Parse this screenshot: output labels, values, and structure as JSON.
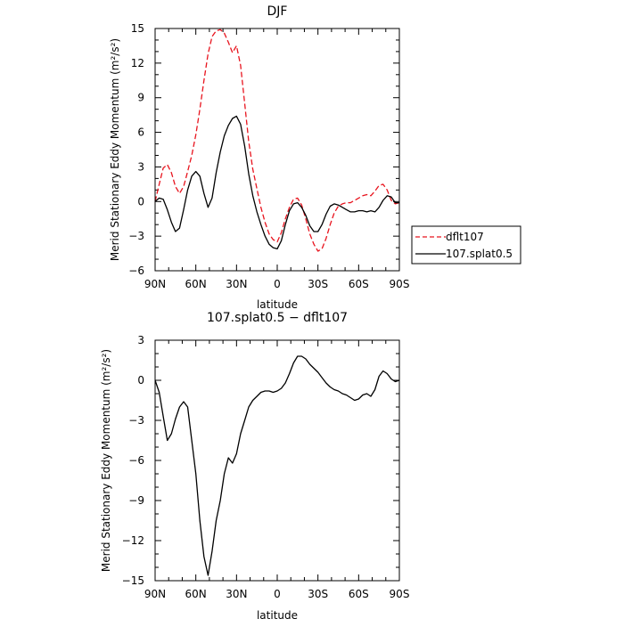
{
  "chart_data": [
    {
      "type": "line",
      "title": "DJF",
      "xlabel": "latitude",
      "ylabel": "Merid Stationary Eddy Momentum  (m²/s²)",
      "xlim": [
        90,
        -90
      ],
      "ylim": [
        -6,
        15
      ],
      "xticks": [
        90,
        60,
        30,
        0,
        -30,
        -60,
        -90
      ],
      "xtick_labels": [
        "90N",
        "60N",
        "30N",
        "0",
        "30S",
        "60S",
        "90S"
      ],
      "yticks": [
        -6,
        -3,
        0,
        3,
        6,
        9,
        12,
        15
      ],
      "ytick_labels": [
        "−6",
        "−3",
        "0",
        "3",
        "6",
        "9",
        "12",
        "15"
      ],
      "legend_position": "right",
      "series": [
        {
          "name": "dflt107",
          "color": "#e8141e",
          "dash": "dashed",
          "x": [
            90,
            87,
            84,
            81,
            78,
            75,
            72,
            69,
            66,
            63,
            60,
            57,
            54,
            51,
            48,
            45,
            42,
            39,
            36,
            33,
            30,
            27,
            24,
            21,
            18,
            15,
            12,
            9,
            6,
            3,
            0,
            -3,
            -6,
            -9,
            -12,
            -15,
            -18,
            -21,
            -24,
            -27,
            -30,
            -33,
            -36,
            -39,
            -42,
            -45,
            -48,
            -51,
            -54,
            -57,
            -60,
            -63,
            -66,
            -69,
            -72,
            -75,
            -78,
            -81,
            -84,
            -87,
            -90
          ],
          "y": [
            0.0,
            1.5,
            2.9,
            3.2,
            2.5,
            1.3,
            0.7,
            1.3,
            2.6,
            4.0,
            5.8,
            8.0,
            10.5,
            12.8,
            14.3,
            14.8,
            14.9,
            14.6,
            13.8,
            12.9,
            13.5,
            11.8,
            8.5,
            5.2,
            2.8,
            1.1,
            -0.5,
            -1.8,
            -2.8,
            -3.3,
            -3.5,
            -2.7,
            -1.5,
            -0.5,
            0.2,
            0.3,
            -0.3,
            -1.5,
            -2.8,
            -3.7,
            -4.3,
            -4.1,
            -3.2,
            -2.0,
            -1.0,
            -0.4,
            -0.2,
            -0.1,
            -0.1,
            0.1,
            0.3,
            0.5,
            0.6,
            0.5,
            0.9,
            1.4,
            1.5,
            1.0,
            0.1,
            -0.2,
            -0.1
          ]
        },
        {
          "name": "107.splat0.5",
          "color": "#000000",
          "dash": "solid",
          "x": [
            90,
            87,
            84,
            81,
            78,
            75,
            72,
            69,
            66,
            63,
            60,
            57,
            54,
            51,
            48,
            45,
            42,
            39,
            36,
            33,
            30,
            27,
            24,
            21,
            18,
            15,
            12,
            9,
            6,
            3,
            0,
            -3,
            -6,
            -9,
            -12,
            -15,
            -18,
            -21,
            -24,
            -27,
            -30,
            -33,
            -36,
            -39,
            -42,
            -45,
            -48,
            -51,
            -54,
            -57,
            -60,
            -63,
            -66,
            -69,
            -72,
            -75,
            -78,
            -81,
            -84,
            -87,
            -90
          ],
          "y": [
            0.0,
            0.3,
            0.2,
            -0.7,
            -1.8,
            -2.6,
            -2.3,
            -0.7,
            1.0,
            2.2,
            2.6,
            2.2,
            0.7,
            -0.5,
            0.3,
            2.5,
            4.3,
            5.7,
            6.6,
            7.2,
            7.4,
            6.7,
            4.8,
            2.4,
            0.5,
            -0.9,
            -2.0,
            -3.0,
            -3.7,
            -4.0,
            -4.1,
            -3.4,
            -2.0,
            -0.8,
            -0.2,
            -0.1,
            -0.5,
            -1.2,
            -2.1,
            -2.6,
            -2.6,
            -2.0,
            -1.1,
            -0.4,
            -0.2,
            -0.3,
            -0.5,
            -0.7,
            -0.9,
            -0.9,
            -0.8,
            -0.8,
            -0.9,
            -0.8,
            -0.9,
            -0.5,
            0.1,
            0.5,
            0.4,
            -0.1,
            -0.1
          ]
        }
      ]
    },
    {
      "type": "line",
      "title": "107.splat0.5 − dflt107",
      "xlabel": "latitude",
      "ylabel": "Merid Stationary Eddy Momentum  (m²/s²)",
      "xlim": [
        90,
        -90
      ],
      "ylim": [
        -15,
        3
      ],
      "xticks": [
        90,
        60,
        30,
        0,
        -30,
        -60,
        -90
      ],
      "xtick_labels": [
        "90N",
        "60N",
        "30N",
        "0",
        "30S",
        "60S",
        "90S"
      ],
      "yticks": [
        -15,
        -12,
        -9,
        -6,
        -3,
        0,
        3
      ],
      "ytick_labels": [
        "−15",
        "−12",
        "−9",
        "−6",
        "−3",
        "0",
        "3"
      ],
      "series": [
        {
          "color": "#000000",
          "dash": "solid",
          "x": [
            90,
            87,
            84,
            81,
            78,
            75,
            72,
            69,
            66,
            63,
            60,
            57,
            54,
            51,
            48,
            45,
            42,
            39,
            36,
            33,
            30,
            27,
            24,
            21,
            18,
            15,
            12,
            9,
            6,
            3,
            0,
            -3,
            -6,
            -9,
            -12,
            -15,
            -18,
            -21,
            -24,
            -27,
            -30,
            -33,
            -36,
            -39,
            -42,
            -45,
            -48,
            -51,
            -54,
            -57,
            -60,
            -63,
            -66,
            -69,
            -72,
            -75,
            -78,
            -81,
            -84,
            -87,
            -90
          ],
          "y": [
            0.0,
            -0.9,
            -2.7,
            -4.5,
            -4.0,
            -2.9,
            -2.0,
            -1.6,
            -2.0,
            -4.5,
            -7.0,
            -10.5,
            -13.2,
            -14.6,
            -12.8,
            -10.5,
            -9.0,
            -7.0,
            -5.8,
            -6.2,
            -5.5,
            -4.0,
            -3.0,
            -2.0,
            -1.5,
            -1.2,
            -0.9,
            -0.8,
            -0.8,
            -0.9,
            -0.8,
            -0.6,
            -0.2,
            0.5,
            1.3,
            1.8,
            1.8,
            1.6,
            1.2,
            0.9,
            0.6,
            0.2,
            -0.2,
            -0.5,
            -0.7,
            -0.8,
            -1.0,
            -1.1,
            -1.3,
            -1.5,
            -1.4,
            -1.1,
            -1.0,
            -1.2,
            -0.7,
            0.3,
            0.7,
            0.5,
            0.1,
            -0.1,
            0.0
          ]
        }
      ]
    }
  ]
}
